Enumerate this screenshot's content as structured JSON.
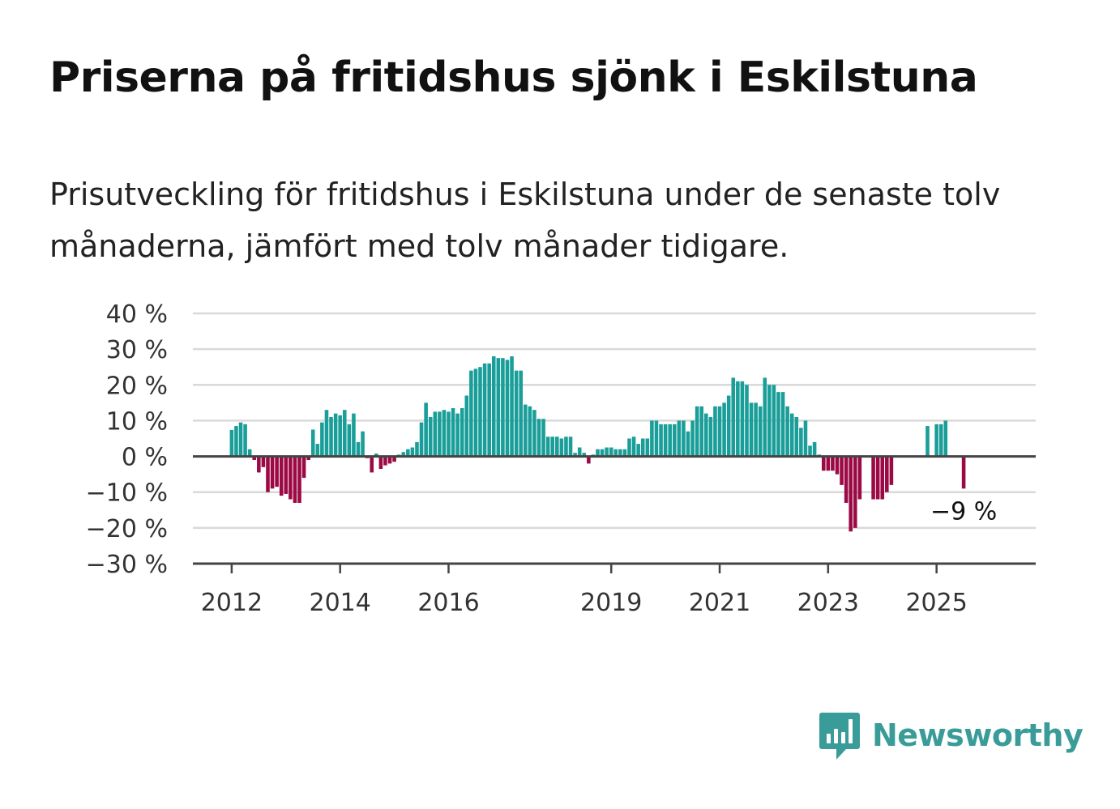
{
  "title": "Priserna på fritidshus sjönk i Eskilstuna",
  "subtitle": "Prisutveckling för fritidshus i Eskilstuna under de senaste tolv månaderna, jämfört med tolv månader tidigare.",
  "brand": {
    "name": "Newsworthy",
    "logo_icon": "bar-chart-speech-bubble-icon",
    "color": "#3a9c99"
  },
  "colors": {
    "positive": "#1a9e99",
    "negative": "#9b0a45",
    "grid": "#d9d9d9",
    "axis": "#444444"
  },
  "chart_data": {
    "type": "bar",
    "title": "Priserna på fritidshus sjönk i Eskilstuna",
    "xlabel": "",
    "ylabel": "",
    "ylim": [
      -30,
      40
    ],
    "yticks": [
      40,
      30,
      20,
      10,
      0,
      -10,
      -20,
      -30
    ],
    "ytick_labels": [
      "40 %",
      "30 %",
      "20 %",
      "10 %",
      "0 %",
      "−10 %",
      "−20 %",
      "−30 %"
    ],
    "xticks": [
      2012,
      2014,
      2016,
      2019,
      2021,
      2023,
      2025
    ],
    "xtick_labels": [
      "2012",
      "2014",
      "2016",
      "2019",
      "2021",
      "2023",
      "2025"
    ],
    "grid": true,
    "x_start": "2011-08",
    "x_end": "2026-07",
    "annotation": {
      "text": "−9 %",
      "month": "2025-07"
    },
    "series": [
      {
        "values": [
          [
            "2012-01",
            7.4
          ],
          [
            "2012-02",
            8.5
          ],
          [
            "2012-03",
            9.5
          ],
          [
            "2012-04",
            9.0
          ],
          [
            "2012-05",
            2.0
          ],
          [
            "2012-06",
            -1.0
          ],
          [
            "2012-07",
            -4.5
          ],
          [
            "2012-08",
            -3.0
          ],
          [
            "2012-09",
            -10.0
          ],
          [
            "2012-10",
            -9.0
          ],
          [
            "2012-11",
            -8.5
          ],
          [
            "2012-12",
            -11.0
          ],
          [
            "2013-01",
            -10.5
          ],
          [
            "2013-02",
            -12.0
          ],
          [
            "2013-03",
            -13.0
          ],
          [
            "2013-04",
            -13.0
          ],
          [
            "2013-05",
            -6.0
          ],
          [
            "2013-06",
            -1.0
          ],
          [
            "2013-07",
            7.5
          ],
          [
            "2013-08",
            3.5
          ],
          [
            "2013-09",
            9.5
          ],
          [
            "2013-10",
            13.0
          ],
          [
            "2013-11",
            11.0
          ],
          [
            "2013-12",
            12.0
          ],
          [
            "2014-01",
            11.5
          ],
          [
            "2014-02",
            13.0
          ],
          [
            "2014-03",
            9.0
          ],
          [
            "2014-04",
            12.0
          ],
          [
            "2014-05",
            4.0
          ],
          [
            "2014-06",
            7.0
          ],
          [
            "2014-07",
            -0.5
          ],
          [
            "2014-08",
            -4.5
          ],
          [
            "2014-09",
            0.8
          ],
          [
            "2014-10",
            -3.5
          ],
          [
            "2014-11",
            -2.5
          ],
          [
            "2014-12",
            -2.0
          ],
          [
            "2015-01",
            -1.5
          ],
          [
            "2015-02",
            0.5
          ],
          [
            "2015-03",
            1.2
          ],
          [
            "2015-04",
            2.0
          ],
          [
            "2015-05",
            2.5
          ],
          [
            "2015-06",
            4.0
          ],
          [
            "2015-07",
            9.5
          ],
          [
            "2015-08",
            15.0
          ],
          [
            "2015-09",
            11.0
          ],
          [
            "2015-10",
            12.5
          ],
          [
            "2015-11",
            12.5
          ],
          [
            "2015-12",
            13.0
          ],
          [
            "2016-01",
            12.5
          ],
          [
            "2016-02",
            13.5
          ],
          [
            "2016-03",
            12.0
          ],
          [
            "2016-04",
            13.5
          ],
          [
            "2016-05",
            17.0
          ],
          [
            "2016-06",
            24.0
          ],
          [
            "2016-07",
            24.5
          ],
          [
            "2016-08",
            25.0
          ],
          [
            "2016-09",
            26.0
          ],
          [
            "2016-10",
            26.0
          ],
          [
            "2016-11",
            28.0
          ],
          [
            "2016-12",
            27.5
          ],
          [
            "2017-01",
            27.5
          ],
          [
            "2017-02",
            27.0
          ],
          [
            "2017-03",
            28.0
          ],
          [
            "2017-04",
            24.0
          ],
          [
            "2017-05",
            24.0
          ],
          [
            "2017-06",
            14.5
          ],
          [
            "2017-07",
            14.0
          ],
          [
            "2017-08",
            13.0
          ],
          [
            "2017-09",
            10.5
          ],
          [
            "2017-10",
            10.5
          ],
          [
            "2017-11",
            5.5
          ],
          [
            "2017-12",
            5.5
          ],
          [
            "2018-01",
            5.5
          ],
          [
            "2018-02",
            5.0
          ],
          [
            "2018-03",
            5.5
          ],
          [
            "2018-04",
            5.5
          ],
          [
            "2018-05",
            1.0
          ],
          [
            "2018-06",
            2.5
          ],
          [
            "2018-07",
            1.0
          ],
          [
            "2018-08",
            -2.0
          ],
          [
            "2018-09",
            0.5
          ],
          [
            "2018-10",
            2.0
          ],
          [
            "2018-11",
            2.0
          ],
          [
            "2018-12",
            2.5
          ],
          [
            "2019-01",
            2.5
          ],
          [
            "2019-02",
            2.0
          ],
          [
            "2019-03",
            2.0
          ],
          [
            "2019-04",
            2.0
          ],
          [
            "2019-05",
            5.0
          ],
          [
            "2019-06",
            5.5
          ],
          [
            "2019-07",
            3.5
          ],
          [
            "2019-08",
            5.0
          ],
          [
            "2019-09",
            5.0
          ],
          [
            "2019-10",
            10.0
          ],
          [
            "2019-11",
            10.0
          ],
          [
            "2019-12",
            9.0
          ],
          [
            "2020-01",
            9.0
          ],
          [
            "2020-02",
            9.0
          ],
          [
            "2020-03",
            9.0
          ],
          [
            "2020-04",
            10.0
          ],
          [
            "2020-05",
            10.0
          ],
          [
            "2020-06",
            7.0
          ],
          [
            "2020-07",
            10.0
          ],
          [
            "2020-08",
            14.0
          ],
          [
            "2020-09",
            14.0
          ],
          [
            "2020-10",
            12.0
          ],
          [
            "2020-11",
            11.0
          ],
          [
            "2020-12",
            14.0
          ],
          [
            "2021-01",
            14.0
          ],
          [
            "2021-02",
            15.0
          ],
          [
            "2021-03",
            17.0
          ],
          [
            "2021-04",
            22.0
          ],
          [
            "2021-05",
            21.0
          ],
          [
            "2021-06",
            21.0
          ],
          [
            "2021-07",
            20.0
          ],
          [
            "2021-08",
            15.0
          ],
          [
            "2021-09",
            15.0
          ],
          [
            "2021-10",
            14.0
          ],
          [
            "2021-11",
            22.0
          ],
          [
            "2021-12",
            20.0
          ],
          [
            "2022-01",
            20.0
          ],
          [
            "2022-02",
            18.0
          ],
          [
            "2022-03",
            18.0
          ],
          [
            "2022-04",
            14.0
          ],
          [
            "2022-05",
            12.0
          ],
          [
            "2022-06",
            11.0
          ],
          [
            "2022-07",
            8.0
          ],
          [
            "2022-08",
            10.0
          ],
          [
            "2022-09",
            3.0
          ],
          [
            "2022-10",
            4.0
          ],
          [
            "2022-11",
            0.5
          ],
          [
            "2022-12",
            -4.0
          ],
          [
            "2023-01",
            -4.0
          ],
          [
            "2023-02",
            -4.0
          ],
          [
            "2023-03",
            -5.0
          ],
          [
            "2023-04",
            -8.0
          ],
          [
            "2023-05",
            -13.0
          ],
          [
            "2023-06",
            -21.0
          ],
          [
            "2023-07",
            -20.0
          ],
          [
            "2023-08",
            -12.0
          ],
          [
            "2023-11",
            -12.0
          ],
          [
            "2023-12",
            -12.0
          ],
          [
            "2024-01",
            -12.0
          ],
          [
            "2024-02",
            -10.0
          ],
          [
            "2024-03",
            -8.0
          ],
          [
            "2024-11",
            8.5
          ],
          [
            "2025-01",
            9.0
          ],
          [
            "2025-02",
            9.0
          ],
          [
            "2025-03",
            10.0
          ],
          [
            "2025-07",
            -9.0
          ]
        ]
      }
    ]
  }
}
